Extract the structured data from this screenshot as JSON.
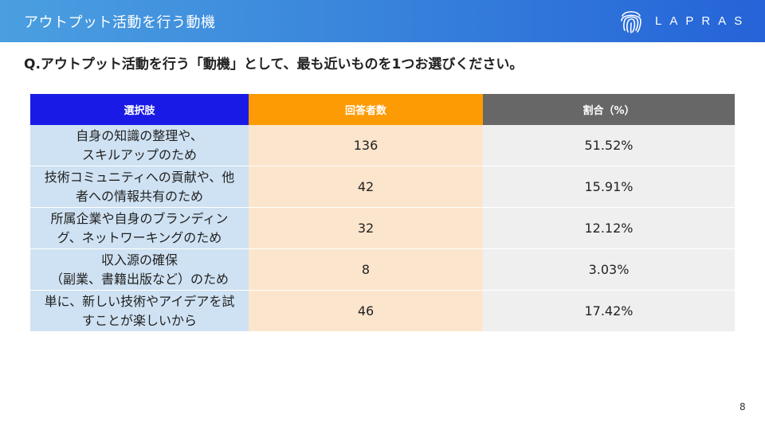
{
  "header": {
    "title": "アウトプット活動を行う動機",
    "logo_text": "LAPRAS",
    "logo_icon": "fingerprint-icon"
  },
  "question": "Q.アウトプット活動を行う「動機」として、最も近いものを1つお選びください。",
  "table": {
    "headers": [
      "選択肢",
      "回答者数",
      "割合（%）"
    ],
    "rows": [
      {
        "choice_line1": "自身の知識の整理や、",
        "choice_line2": "スキルアップのため",
        "count": "136",
        "percent": "51.52%"
      },
      {
        "choice_line1": "技術コミュニティへの貢献や、他",
        "choice_line2": "者への情報共有のため",
        "count": "42",
        "percent": "15.91%"
      },
      {
        "choice_line1": "所属企業や自身のブランディン",
        "choice_line2": "グ、ネットワーキングのため",
        "count": "32",
        "percent": "12.12%"
      },
      {
        "choice_line1": "収入源の確保",
        "choice_line2": "（副業、書籍出版など）のため",
        "count": "8",
        "percent": "3.03%"
      },
      {
        "choice_line1": "単に、新しい技術やアイデアを試",
        "choice_line2": "すことが楽しいから",
        "count": "46",
        "percent": "17.42%"
      }
    ]
  },
  "page_number": "8",
  "colors": {
    "header_gradient_start": "#4a9fe0",
    "header_gradient_end": "#2563d8",
    "col1_header": "#1a1ae6",
    "col2_header": "#fd9b04",
    "col3_header": "#676767",
    "col1_cell": "#cfe2f3",
    "col2_cell": "#fce5cd",
    "col3_cell": "#efefef"
  }
}
